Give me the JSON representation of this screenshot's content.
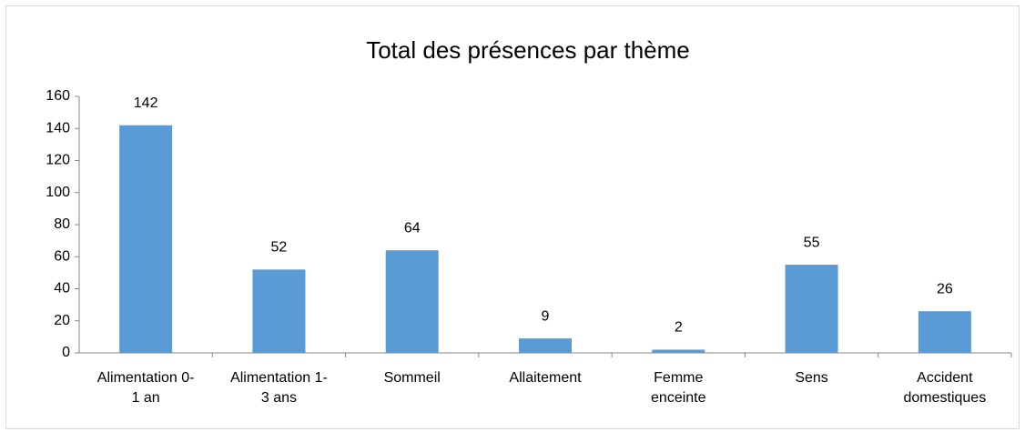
{
  "chart_data": {
    "type": "bar",
    "title": "Total des présences par thème",
    "categories": [
      "Alimentation 0-1 an",
      "Alimentation 1-3 ans",
      "Sommeil",
      "Allaitement",
      "Femme enceinte",
      "Sens",
      "Accident domestiques"
    ],
    "values": [
      142,
      52,
      64,
      9,
      2,
      55,
      26
    ],
    "color": "#5b9bd5",
    "ylim": [
      0,
      160
    ],
    "yticks": [
      0,
      20,
      40,
      60,
      80,
      100,
      120,
      140,
      160
    ],
    "grid": false
  }
}
